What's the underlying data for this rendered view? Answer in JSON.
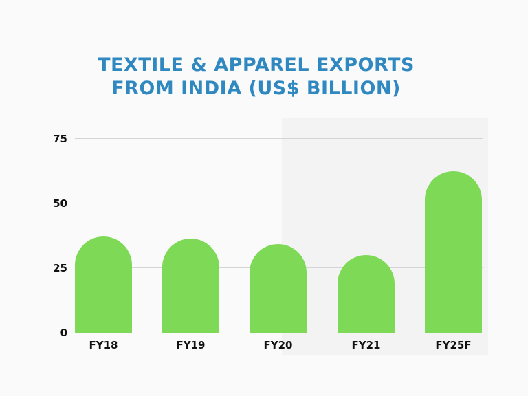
{
  "chart_data": {
    "type": "bar",
    "title": "TEXTILE & APPAREL EXPORTS FROM INDIA (US$ BILLION)",
    "title_lines": [
      "TEXTILE & APPAREL EXPORTS",
      "FROM INDIA (US$ BILLION)"
    ],
    "categories": [
      "FY18",
      "FY19",
      "FY20",
      "FY21",
      "FY25F"
    ],
    "values": [
      37.2,
      36.2,
      34.3,
      30.0,
      62.2
    ],
    "xlabel": "",
    "ylabel": "",
    "ylim": [
      0,
      75
    ],
    "yticks": [
      "0",
      "25",
      "50",
      "75"
    ],
    "grid": true,
    "legend": null,
    "colors": {
      "bar": "#7ed957",
      "title": "#2f88c0",
      "highlight_region": "#f3f3f3"
    },
    "annotations": [
      "Shaded background region behind FY21–FY25F"
    ]
  }
}
